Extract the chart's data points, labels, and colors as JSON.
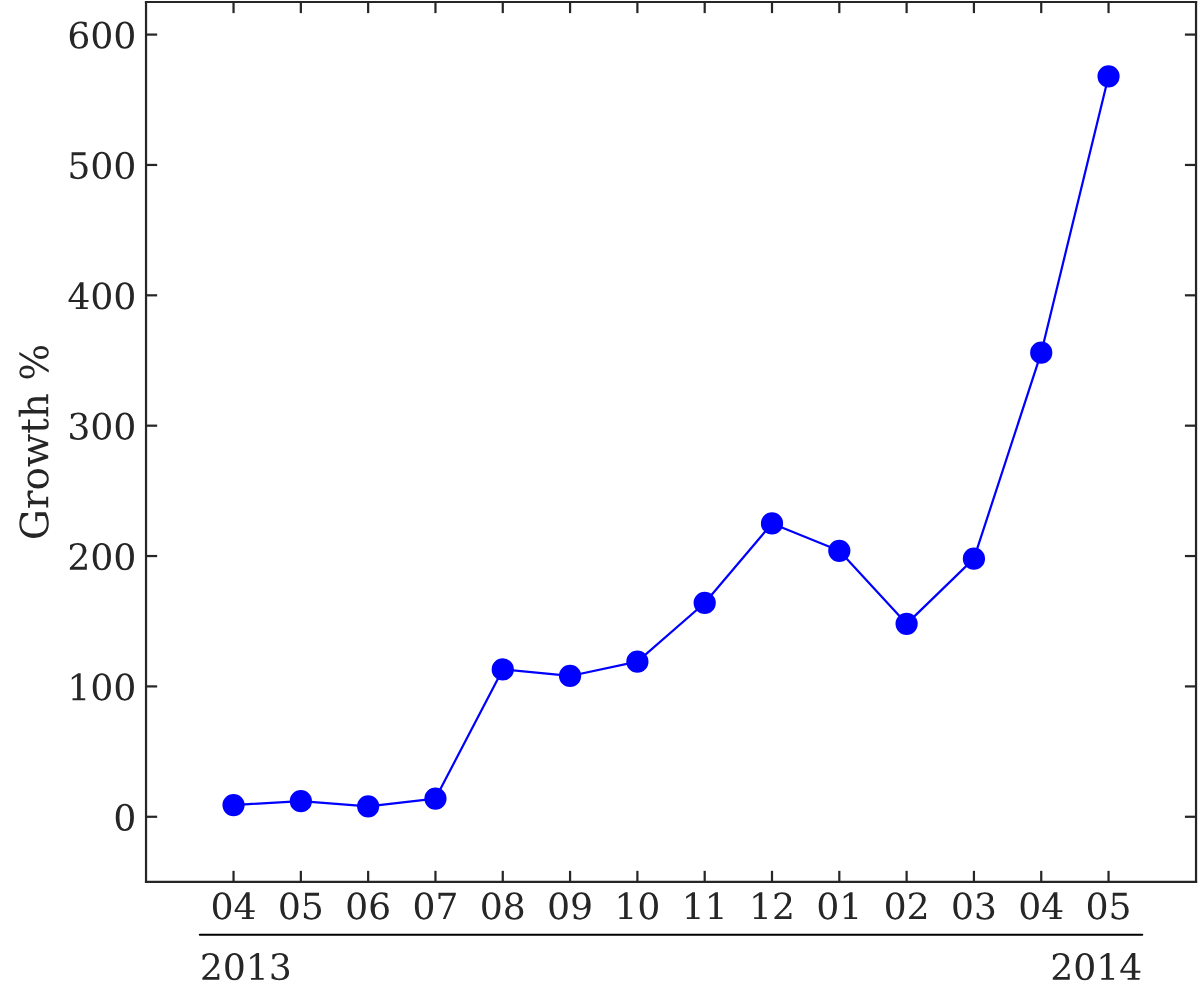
{
  "chart_data": {
    "type": "line",
    "ylabel": "Growth %",
    "categories": [
      "04",
      "05",
      "06",
      "07",
      "08",
      "09",
      "10",
      "11",
      "12",
      "01",
      "02",
      "03",
      "04",
      "05"
    ],
    "series": [
      {
        "color": "#0000ff",
        "values": [
          9,
          12,
          8,
          14,
          113,
          108,
          119,
          164,
          225,
          204,
          148,
          198,
          356,
          568
        ]
      }
    ],
    "ylim": [
      -50,
      625
    ],
    "yticks": [
      0,
      100,
      200,
      300,
      400,
      500,
      600
    ],
    "marker": "circle",
    "line_style": "solid",
    "grid": false,
    "legend": false,
    "annotations": [
      "2013",
      "2014"
    ]
  }
}
